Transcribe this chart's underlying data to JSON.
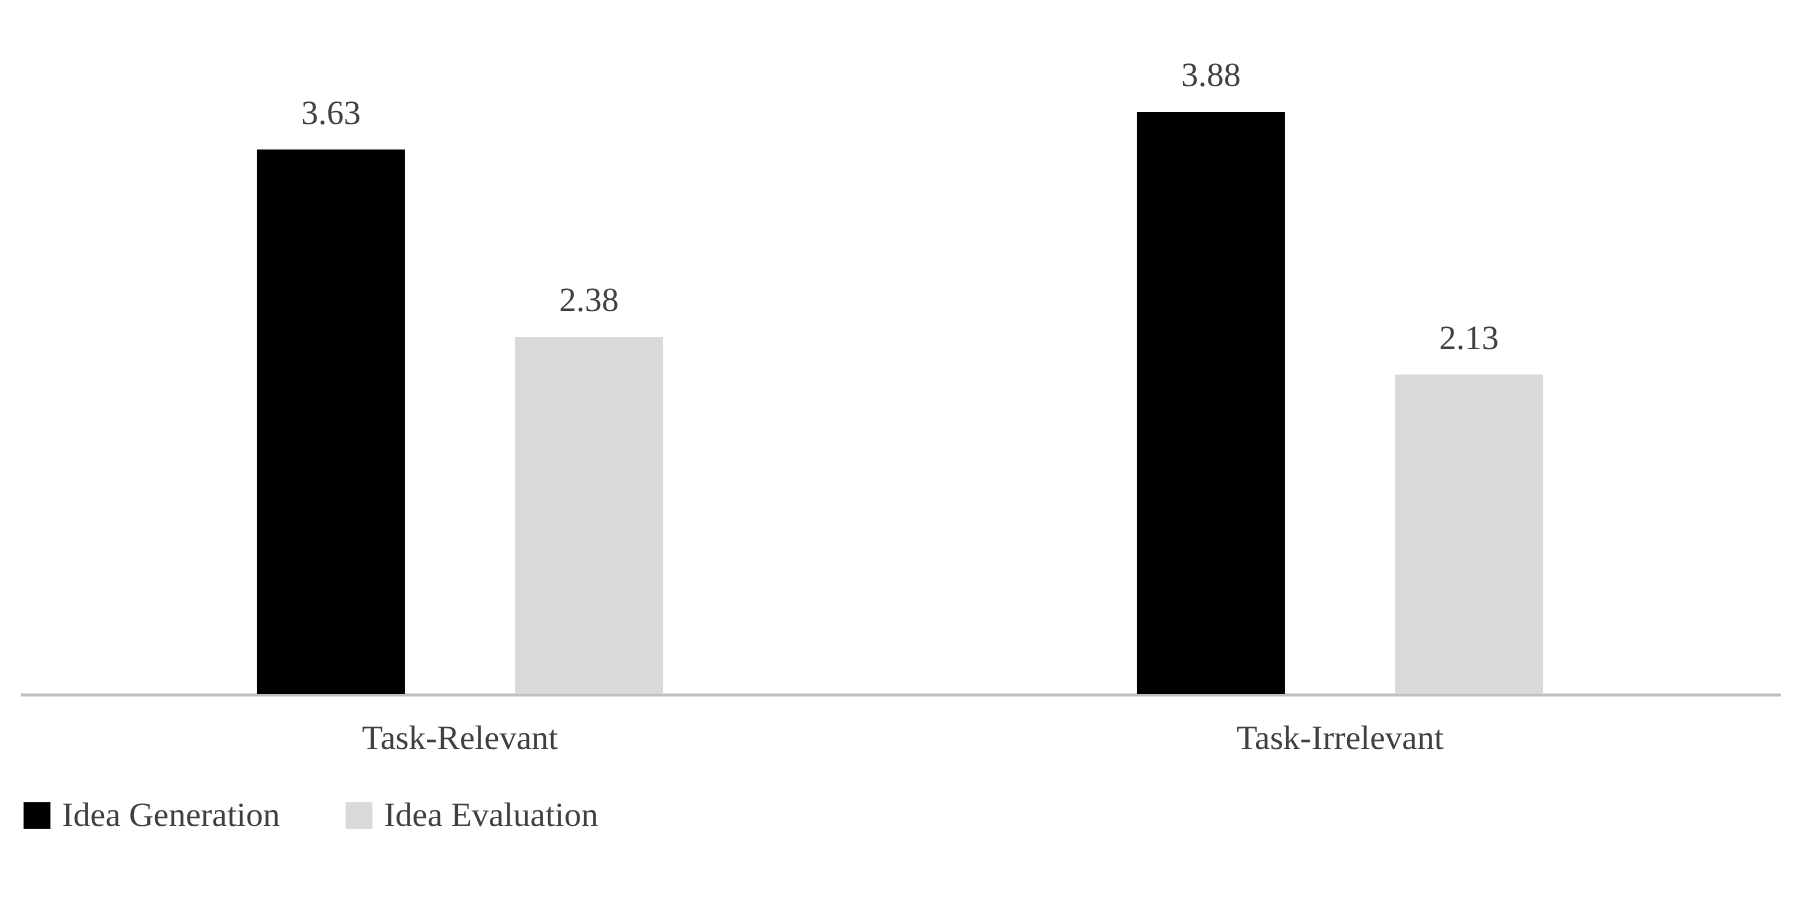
{
  "chart_data": {
    "type": "bar",
    "categories": [
      "Task-Relevant",
      "Task-Irrelevant"
    ],
    "series": [
      {
        "name": "Idea Generation",
        "color": "#000000",
        "values": [
          3.63,
          3.88
        ]
      },
      {
        "name": "Idea Evaluation",
        "color": "#d9d9d9",
        "values": [
          2.38,
          2.13
        ]
      }
    ],
    "data_labels": true,
    "legend": "bottom",
    "grid": false
  }
}
